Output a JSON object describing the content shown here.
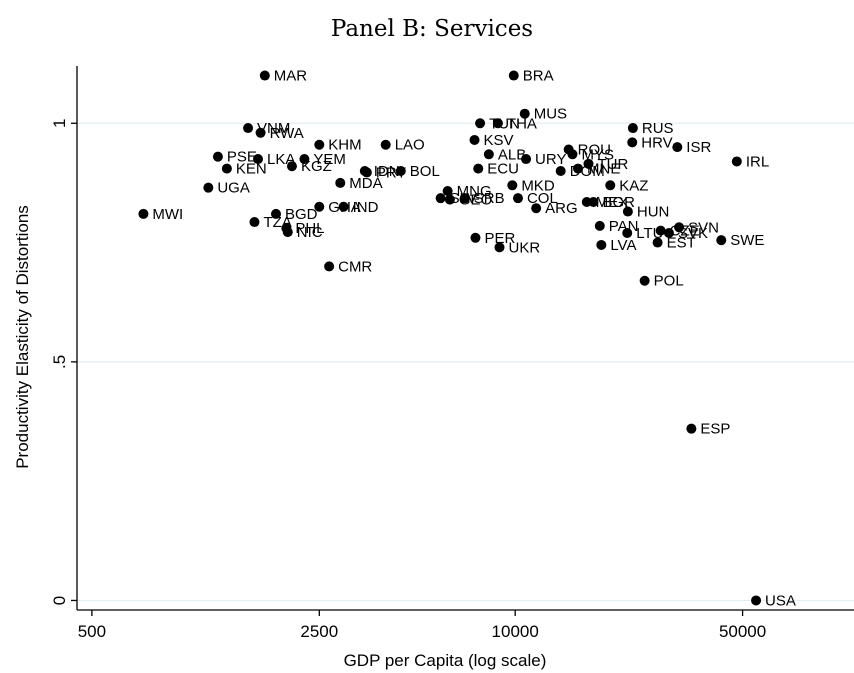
{
  "chart_data": {
    "type": "scatter",
    "title": "Panel B: Services",
    "xlabel": "GDP per Capita (log scale)",
    "ylabel": "Productivity Elasticity of Distortions",
    "x_scale": "log",
    "xlim": [
      450,
      110000
    ],
    "ylim": [
      -0.02,
      1.12
    ],
    "x_ticks": [
      {
        "value": 500,
        "label": "500"
      },
      {
        "value": 2500,
        "label": "2500"
      },
      {
        "value": 10000,
        "label": "10000"
      },
      {
        "value": 50000,
        "label": "50000"
      }
    ],
    "y_ticks": [
      {
        "value": 0,
        "label": "0"
      },
      {
        "value": 0.5,
        "label": ".5"
      },
      {
        "value": 1,
        "label": "1"
      }
    ],
    "grid": true,
    "colors": {
      "marker": "#000000",
      "grid": "#e4eef2",
      "axis": "#000000"
    },
    "points": [
      {
        "label": "MAR",
        "x": 1700,
        "y": 1.1
      },
      {
        "label": "BRA",
        "x": 9900,
        "y": 1.1
      },
      {
        "label": "MUS",
        "x": 10700,
        "y": 1.02
      },
      {
        "label": "TUN",
        "x": 7800,
        "y": 1.0
      },
      {
        "label": "THA",
        "x": 8850,
        "y": 1.0
      },
      {
        "label": "RUS",
        "x": 23000,
        "y": 0.99
      },
      {
        "label": "VNM",
        "x": 1510,
        "y": 0.99
      },
      {
        "label": "RWA",
        "x": 1650,
        "y": 0.98
      },
      {
        "label": "KSV",
        "x": 7500,
        "y": 0.965
      },
      {
        "label": "HRV",
        "x": 22900,
        "y": 0.96
      },
      {
        "label": "ISR",
        "x": 31500,
        "y": 0.95
      },
      {
        "label": "LAO",
        "x": 4000,
        "y": 0.955
      },
      {
        "label": "KHM",
        "x": 2500,
        "y": 0.955
      },
      {
        "label": "ROU",
        "x": 14600,
        "y": 0.945
      },
      {
        "label": "MYS",
        "x": 15000,
        "y": 0.935
      },
      {
        "label": "PSE",
        "x": 1220,
        "y": 0.93
      },
      {
        "label": "LKA",
        "x": 1620,
        "y": 0.925
      },
      {
        "label": "YEM",
        "x": 2250,
        "y": 0.925
      },
      {
        "label": "ALB",
        "x": 8300,
        "y": 0.935
      },
      {
        "label": "URY",
        "x": 10800,
        "y": 0.925
      },
      {
        "label": "TUR",
        "x": 16800,
        "y": 0.915
      },
      {
        "label": "IRL",
        "x": 48000,
        "y": 0.92
      },
      {
        "label": "KEN",
        "x": 1300,
        "y": 0.905
      },
      {
        "label": "KGZ",
        "x": 2060,
        "y": 0.91
      },
      {
        "label": "IDN",
        "x": 3450,
        "y": 0.9
      },
      {
        "label": "ECU",
        "x": 7700,
        "y": 0.905
      },
      {
        "label": "DOM",
        "x": 13800,
        "y": 0.9
      },
      {
        "label": "MNE",
        "x": 15600,
        "y": 0.905
      },
      {
        "label": "PRY",
        "x": 3500,
        "y": 0.897
      },
      {
        "label": "BOL",
        "x": 4450,
        "y": 0.9
      },
      {
        "label": "MDA",
        "x": 2900,
        "y": 0.875
      },
      {
        "label": "UGA",
        "x": 1140,
        "y": 0.865
      },
      {
        "label": "MKD",
        "x": 9800,
        "y": 0.87
      },
      {
        "label": "KAZ",
        "x": 19600,
        "y": 0.87
      },
      {
        "label": "MNG",
        "x": 6200,
        "y": 0.858
      },
      {
        "label": "GEO",
        "x": 6300,
        "y": 0.84
      },
      {
        "label": "SRB",
        "x": 7000,
        "y": 0.843
      },
      {
        "label": "SLV",
        "x": 5900,
        "y": 0.843
      },
      {
        "label": "COL",
        "x": 10200,
        "y": 0.843
      },
      {
        "label": "MEX",
        "x": 16600,
        "y": 0.835
      },
      {
        "label": "BGR",
        "x": 17400,
        "y": 0.835
      },
      {
        "label": "GHA",
        "x": 2500,
        "y": 0.825
      },
      {
        "label": "IND",
        "x": 2970,
        "y": 0.825
      },
      {
        "label": "ARG",
        "x": 11600,
        "y": 0.822
      },
      {
        "label": "HUN",
        "x": 22200,
        "y": 0.815
      },
      {
        "label": "MWI",
        "x": 720,
        "y": 0.81
      },
      {
        "label": "BGD",
        "x": 1840,
        "y": 0.81
      },
      {
        "label": "TZA",
        "x": 1580,
        "y": 0.793
      },
      {
        "label": "SVN",
        "x": 31900,
        "y": 0.782
      },
      {
        "label": "PAN",
        "x": 18200,
        "y": 0.785
      },
      {
        "label": "CZE",
        "x": 28000,
        "y": 0.775
      },
      {
        "label": "SVK",
        "x": 29700,
        "y": 0.77
      },
      {
        "label": "LTU",
        "x": 22100,
        "y": 0.77
      },
      {
        "label": "PHL",
        "x": 1980,
        "y": 0.78
      },
      {
        "label": "NIC",
        "x": 2000,
        "y": 0.772
      },
      {
        "label": "PER",
        "x": 7550,
        "y": 0.76
      },
      {
        "label": "EST",
        "x": 27400,
        "y": 0.75
      },
      {
        "label": "SWE",
        "x": 43000,
        "y": 0.755
      },
      {
        "label": "UKR",
        "x": 8950,
        "y": 0.74
      },
      {
        "label": "LVA",
        "x": 18400,
        "y": 0.745
      },
      {
        "label": "CMR",
        "x": 2680,
        "y": 0.7
      },
      {
        "label": "POL",
        "x": 25000,
        "y": 0.67
      },
      {
        "label": "ESP",
        "x": 34800,
        "y": 0.36
      },
      {
        "label": "USA",
        "x": 55000,
        "y": 0.0
      }
    ]
  }
}
